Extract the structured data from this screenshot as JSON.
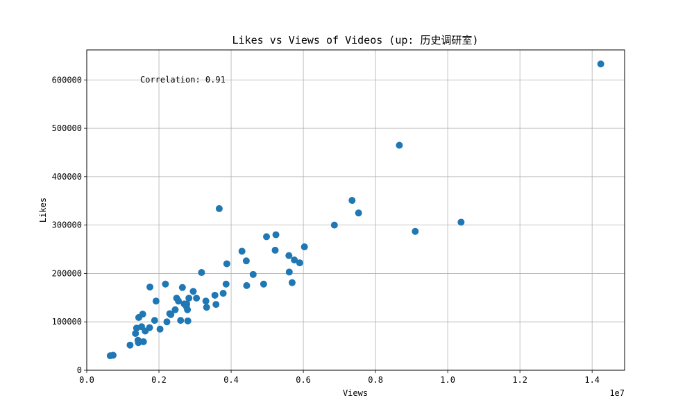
{
  "chart_data": {
    "type": "scatter",
    "title": "Likes vs Views of Videos (up: 历史调研室)",
    "xlabel": "Views",
    "ylabel": "Likes",
    "x_offset_label": "1e7",
    "x_scale": 10000000,
    "annotation": "Correlation: 0.91",
    "xlim": [
      0,
      14900000
    ],
    "ylim": [
      0,
      662000
    ],
    "xticks": [
      0,
      2000000,
      4000000,
      6000000,
      8000000,
      10000000,
      12000000,
      14000000
    ],
    "xtick_labels": [
      "0.0",
      "0.2",
      "0.4",
      "0.6",
      "0.8",
      "1.0",
      "1.2",
      "1.4"
    ],
    "yticks": [
      0,
      100000,
      200000,
      300000,
      400000,
      500000,
      600000
    ],
    "ytick_labels": [
      "0",
      "100000",
      "200000",
      "300000",
      "400000",
      "500000",
      "600000"
    ],
    "grid": true,
    "marker_color": "#1f77b4",
    "points": [
      [
        650000,
        30000
      ],
      [
        730000,
        31000
      ],
      [
        1200000,
        52000
      ],
      [
        1350000,
        76000
      ],
      [
        1380000,
        87000
      ],
      [
        1420000,
        62000
      ],
      [
        1430000,
        57000
      ],
      [
        1440000,
        109000
      ],
      [
        1520000,
        90000
      ],
      [
        1550000,
        116000
      ],
      [
        1570000,
        59000
      ],
      [
        1620000,
        81000
      ],
      [
        1740000,
        88000
      ],
      [
        1750000,
        172000
      ],
      [
        1880000,
        103000
      ],
      [
        1920000,
        143000
      ],
      [
        2030000,
        85000
      ],
      [
        2180000,
        178000
      ],
      [
        2220000,
        100000
      ],
      [
        2300000,
        117000
      ],
      [
        2330000,
        115000
      ],
      [
        2450000,
        125000
      ],
      [
        2490000,
        149000
      ],
      [
        2540000,
        143000
      ],
      [
        2600000,
        103000
      ],
      [
        2650000,
        171000
      ],
      [
        2700000,
        137000
      ],
      [
        2760000,
        132000
      ],
      [
        2770000,
        137000
      ],
      [
        2790000,
        125000
      ],
      [
        2800000,
        102000
      ],
      [
        2830000,
        149000
      ],
      [
        2950000,
        163000
      ],
      [
        3040000,
        149000
      ],
      [
        3180000,
        202000
      ],
      [
        3300000,
        143000
      ],
      [
        3320000,
        130000
      ],
      [
        3550000,
        155000
      ],
      [
        3580000,
        136000
      ],
      [
        3670000,
        334000
      ],
      [
        3780000,
        159000
      ],
      [
        3860000,
        178000
      ],
      [
        3880000,
        220000
      ],
      [
        4300000,
        246000
      ],
      [
        4420000,
        226000
      ],
      [
        4430000,
        175000
      ],
      [
        4610000,
        198000
      ],
      [
        4900000,
        178000
      ],
      [
        4980000,
        276000
      ],
      [
        5220000,
        248000
      ],
      [
        5240000,
        280000
      ],
      [
        5600000,
        237000
      ],
      [
        5610000,
        203000
      ],
      [
        5690000,
        181000
      ],
      [
        5750000,
        228000
      ],
      [
        5900000,
        222000
      ],
      [
        6030000,
        255000
      ],
      [
        6860000,
        300000
      ],
      [
        7350000,
        351000
      ],
      [
        7530000,
        325000
      ],
      [
        8660000,
        465000
      ],
      [
        9100000,
        287000
      ],
      [
        10370000,
        306000
      ],
      [
        14240000,
        633000
      ]
    ]
  }
}
